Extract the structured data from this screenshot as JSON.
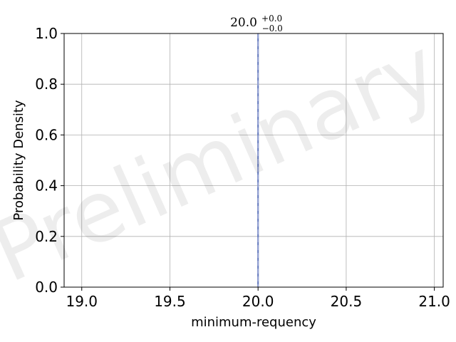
{
  "chart_data": {
    "type": "line",
    "title": "",
    "xlabel": "minimum-requency",
    "ylabel": "Probability Density",
    "xlim": [
      18.9,
      21.05
    ],
    "ylim": [
      0.0,
      1.0
    ],
    "x_ticks": [
      19.0,
      19.5,
      20.0,
      20.5,
      21.0
    ],
    "x_tick_labels": [
      "19.0",
      "19.5",
      "20.0",
      "20.5",
      "21.0"
    ],
    "y_ticks": [
      0.0,
      0.2,
      0.4,
      0.6,
      0.8,
      1.0
    ],
    "y_tick_labels": [
      "0.0",
      "0.2",
      "0.4",
      "0.6",
      "0.8",
      "1.0"
    ],
    "grid": true,
    "series": [
      {
        "x": [
          20.0,
          20.0
        ],
        "y": [
          0.0,
          1.0
        ],
        "color": "#6a7fc0",
        "style": "solid"
      }
    ],
    "markers": [
      {
        "x": 20.0,
        "color": "#9aa6d6",
        "style": "dashed"
      }
    ],
    "annotation": {
      "value": "20.0",
      "upper": "+0.0",
      "lower": "−0.0"
    },
    "watermark": "Preliminary"
  }
}
